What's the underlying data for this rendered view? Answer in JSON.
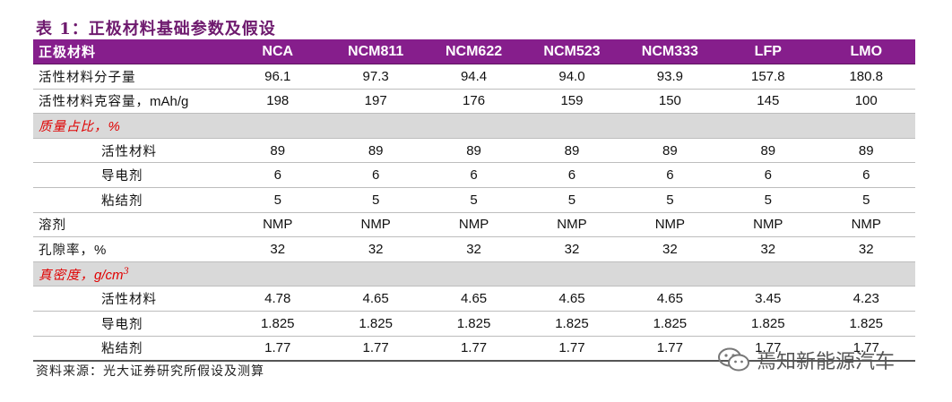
{
  "title": "表 1：正极材料基础参数及假设",
  "header": [
    "正极材料",
    "NCA",
    "NCM811",
    "NCM622",
    "NCM523",
    "NCM333",
    "LFP",
    "LMO"
  ],
  "rows": [
    {
      "label": "活性材料分子量",
      "indent": false,
      "section": false,
      "values": [
        "96.1",
        "97.3",
        "94.4",
        "94.0",
        "93.9",
        "157.8",
        "180.8"
      ]
    },
    {
      "label": "活性材料克容量，",
      "unit": "mAh/g",
      "indent": false,
      "section": false,
      "values": [
        "198",
        "197",
        "176",
        "159",
        "150",
        "145",
        "100"
      ]
    },
    {
      "label": "质量占比，",
      "unit": "%",
      "indent": false,
      "section": true,
      "values": [
        "",
        "",
        "",
        "",
        "",
        "",
        ""
      ]
    },
    {
      "label": "活性材料",
      "indent": true,
      "section": false,
      "values": [
        "89",
        "89",
        "89",
        "89",
        "89",
        "89",
        "89"
      ]
    },
    {
      "label": "导电剂",
      "indent": true,
      "section": false,
      "values": [
        "6",
        "6",
        "6",
        "6",
        "6",
        "6",
        "6"
      ]
    },
    {
      "label": "粘结剂",
      "indent": true,
      "section": false,
      "values": [
        "5",
        "5",
        "5",
        "5",
        "5",
        "5",
        "5"
      ]
    },
    {
      "label": "溶剂",
      "indent": false,
      "section": false,
      "values": [
        "NMP",
        "NMP",
        "NMP",
        "NMP",
        "NMP",
        "NMP",
        "NMP"
      ]
    },
    {
      "label": "孔隙率，",
      "unit": "%",
      "indent": false,
      "section": false,
      "values": [
        "32",
        "32",
        "32",
        "32",
        "32",
        "32",
        "32"
      ]
    },
    {
      "label": "真密度，",
      "unit": "g/cm",
      "sup": "3",
      "indent": false,
      "section": true,
      "values": [
        "",
        "",
        "",
        "",
        "",
        "",
        ""
      ]
    },
    {
      "label": "活性材料",
      "indent": true,
      "section": false,
      "values": [
        "4.78",
        "4.65",
        "4.65",
        "4.65",
        "4.65",
        "3.45",
        "4.23"
      ]
    },
    {
      "label": "导电剂",
      "indent": true,
      "section": false,
      "values": [
        "1.825",
        "1.825",
        "1.825",
        "1.825",
        "1.825",
        "1.825",
        "1.825"
      ]
    },
    {
      "label": "粘结剂",
      "indent": true,
      "section": false,
      "values": [
        "1.77",
        "1.77",
        "1.77",
        "1.77",
        "1.77",
        "1.77",
        "1.77"
      ]
    }
  ],
  "source": "资料来源：光大证券研究所假设及测算",
  "watermark": "焉知新能源汽车",
  "colors": {
    "header_bg": "#861e8c",
    "title": "#6e1a6e",
    "section_bg": "#d9d9d9",
    "section_text": "#e00000"
  }
}
